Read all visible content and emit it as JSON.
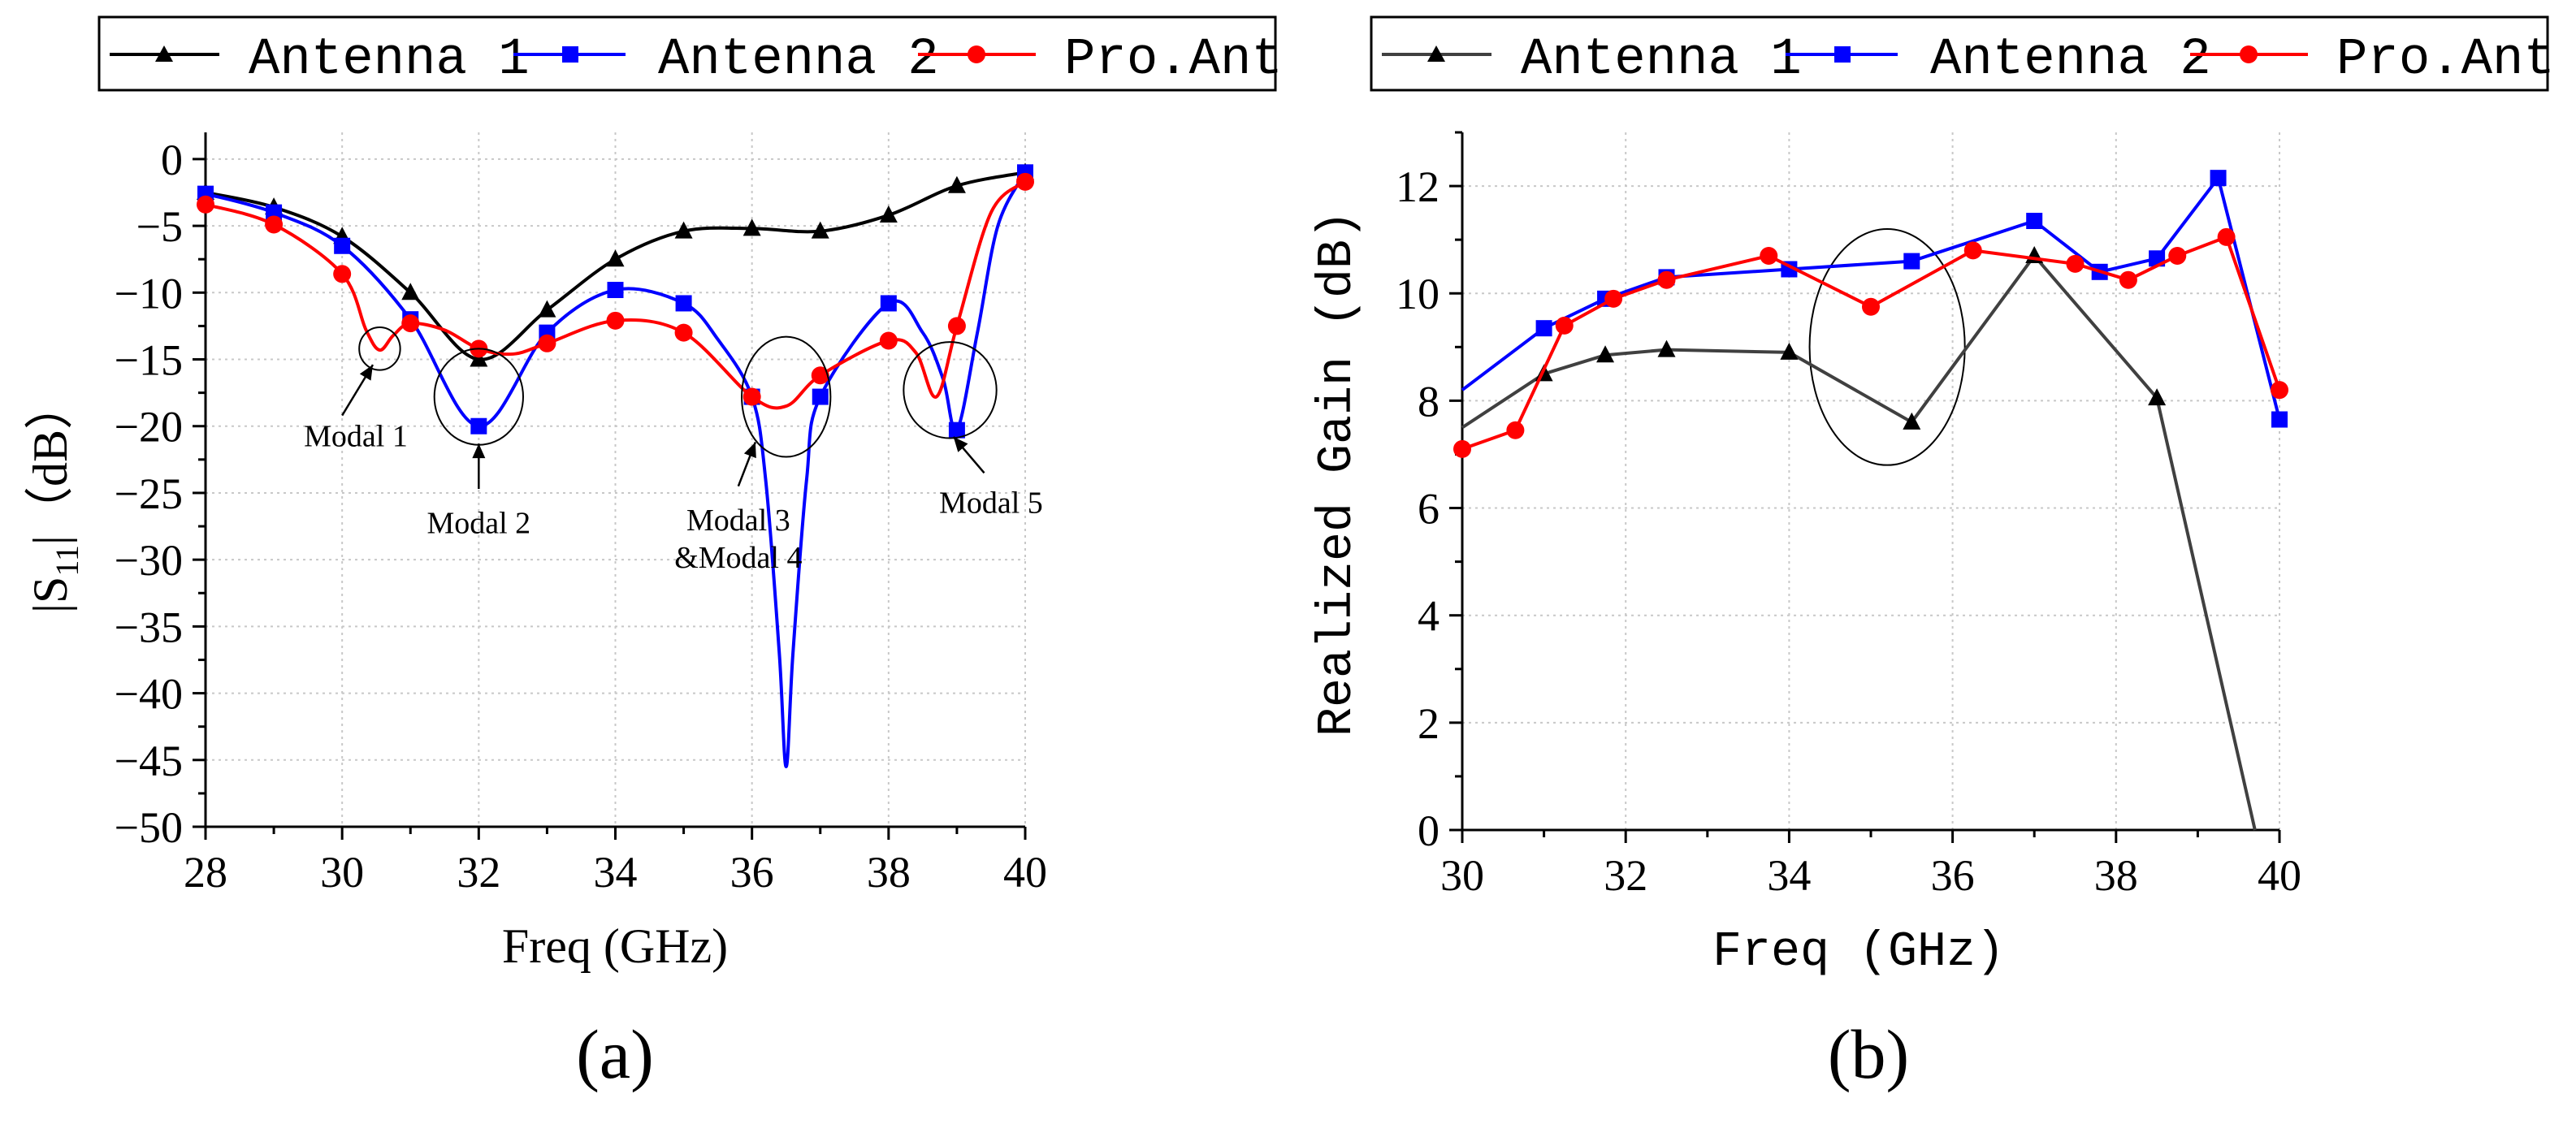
{
  "colors": {
    "antenna1": "#000000",
    "antenna1_b": "#404040",
    "antenna2": "#0000ff",
    "pro_ant": "#ff0000",
    "grid": "#c8c8c8"
  },
  "chart_data": [
    {
      "type": "line",
      "panel_label": "(a)",
      "title": "",
      "xlabel": "Freq (GHz)",
      "ylabel_main": "|S",
      "ylabel_sub": "11",
      "ylabel_tail": "|（dB）",
      "xlim": [
        28,
        40
      ],
      "ylim": [
        -50,
        2
      ],
      "xticks": [
        28,
        30,
        32,
        34,
        36,
        38,
        40
      ],
      "yticks": [
        0,
        -5,
        -10,
        -15,
        -20,
        -25,
        -30,
        -35,
        -40,
        -45,
        -50
      ],
      "xtick_labels": [
        "28",
        "30",
        "32",
        "34",
        "36",
        "38",
        "40"
      ],
      "ytick_labels": [
        "0",
        "−5",
        "−10",
        "−15",
        "−20",
        "−25",
        "−30",
        "−35",
        "−40",
        "−45",
        "−50"
      ],
      "grid": true,
      "legend": [
        "Antenna 1",
        "Antenna 2",
        "Pro.Ant"
      ],
      "series": [
        {
          "name": "Antenna 1",
          "marker": "triangle",
          "curve": [
            [
              28,
              -2.5
            ],
            [
              29,
              -3.6
            ],
            [
              30,
              -5.8
            ],
            [
              31,
              -10.0
            ],
            [
              32,
              -15.0
            ],
            [
              33,
              -11.3
            ],
            [
              34,
              -7.5
            ],
            [
              35,
              -5.4
            ],
            [
              36,
              -5.2
            ],
            [
              37,
              -5.4
            ],
            [
              38,
              -4.2
            ],
            [
              39,
              -2.0
            ],
            [
              40,
              -1.0
            ]
          ],
          "markers": [
            [
              28,
              -2.5
            ],
            [
              29,
              -3.6
            ],
            [
              30,
              -5.8
            ],
            [
              31,
              -10.0
            ],
            [
              32,
              -15.0
            ],
            [
              33,
              -11.3
            ],
            [
              34,
              -7.5
            ],
            [
              35,
              -5.4
            ],
            [
              36,
              -5.2
            ],
            [
              37,
              -5.4
            ],
            [
              38,
              -4.2
            ],
            [
              39,
              -2.0
            ],
            [
              40,
              -1.0
            ]
          ]
        },
        {
          "name": "Antenna 2",
          "marker": "square",
          "curve": [
            [
              28,
              -2.6
            ],
            [
              29,
              -4.0
            ],
            [
              30,
              -6.5
            ],
            [
              31,
              -12.0
            ],
            [
              32,
              -20.0
            ],
            [
              33,
              -13.0
            ],
            [
              34,
              -9.8
            ],
            [
              35,
              -10.8
            ],
            [
              35.5,
              -13.5
            ],
            [
              36,
              -17.8
            ],
            [
              36.2,
              -24.0
            ],
            [
              36.4,
              -37.0
            ],
            [
              36.5,
              -45.5
            ],
            [
              36.6,
              -37.0
            ],
            [
              36.8,
              -24.0
            ],
            [
              37,
              -17.8
            ],
            [
              38,
              -10.8
            ],
            [
              38.5,
              -13.0
            ],
            [
              38.8,
              -16.5
            ],
            [
              39,
              -20.3
            ],
            [
              39.3,
              -13.0
            ],
            [
              39.6,
              -5.0
            ],
            [
              40,
              -1.0
            ]
          ],
          "markers": [
            [
              28,
              -2.6
            ],
            [
              29,
              -4.0
            ],
            [
              30,
              -6.5
            ],
            [
              31,
              -12.0
            ],
            [
              32,
              -20.0
            ],
            [
              33,
              -13.0
            ],
            [
              34,
              -9.8
            ],
            [
              35,
              -10.8
            ],
            [
              36,
              -17.8
            ],
            [
              37,
              -17.8
            ],
            [
              38,
              -10.8
            ],
            [
              39,
              -20.3
            ],
            [
              40,
              -1.0
            ]
          ]
        },
        {
          "name": "Pro.Ant",
          "marker": "circle",
          "curve": [
            [
              28,
              -3.4
            ],
            [
              29,
              -4.9
            ],
            [
              30,
              -8.6
            ],
            [
              30.35,
              -12.8
            ],
            [
              30.55,
              -14.3
            ],
            [
              30.75,
              -13.2
            ],
            [
              31,
              -12.3
            ],
            [
              31.5,
              -12.8
            ],
            [
              32,
              -14.2
            ],
            [
              32.5,
              -14.6
            ],
            [
              33,
              -13.8
            ],
            [
              34,
              -12.1
            ],
            [
              35,
              -13.0
            ],
            [
              36,
              -17.8
            ],
            [
              36.5,
              -18.5
            ],
            [
              37,
              -16.2
            ],
            [
              38,
              -13.6
            ],
            [
              38.4,
              -14.5
            ],
            [
              38.7,
              -17.8
            ],
            [
              39,
              -12.5
            ],
            [
              39.5,
              -4.0
            ],
            [
              40,
              -1.7
            ]
          ],
          "markers": [
            [
              28,
              -3.4
            ],
            [
              29,
              -4.9
            ],
            [
              30,
              -8.6
            ],
            [
              31,
              -12.3
            ],
            [
              32,
              -14.2
            ],
            [
              33,
              -13.8
            ],
            [
              34,
              -12.1
            ],
            [
              35,
              -13.0
            ],
            [
              36,
              -17.8
            ],
            [
              37,
              -16.2
            ],
            [
              38,
              -13.6
            ],
            [
              39,
              -12.5
            ],
            [
              40,
              -1.7
            ]
          ]
        }
      ],
      "annotations": [
        {
          "text": "Modal 1",
          "lines": [
            "Modal 1"
          ],
          "circle": {
            "x": 30.55,
            "y": -14.2,
            "rx": 0.3,
            "ry": 1.6
          },
          "arrow_from": [
            30.0,
            -19.2
          ],
          "arrow_to": [
            30.45,
            -15.4
          ],
          "text_at": [
            30.2,
            -21.5
          ]
        },
        {
          "text": "Modal 2",
          "lines": [
            "Modal 2"
          ],
          "circle": {
            "x": 32.0,
            "y": -17.8,
            "rx": 0.65,
            "ry": 3.6
          },
          "arrow_from": [
            32.0,
            -24.7
          ],
          "arrow_to": [
            32.0,
            -21.3
          ],
          "text_at": [
            32.0,
            -28.0
          ]
        },
        {
          "text": "Modal 3 &Modal 4",
          "lines": [
            "Modal 3",
            "&Modal 4"
          ],
          "circle": {
            "x": 36.5,
            "y": -17.8,
            "rx": 0.65,
            "ry": 4.5
          },
          "arrow_from": [
            35.8,
            -24.5
          ],
          "arrow_to": [
            36.05,
            -21.2
          ],
          "text_at": [
            35.8,
            -27.8
          ]
        },
        {
          "text": "Modal 5",
          "lines": [
            "Modal 5"
          ],
          "circle": {
            "x": 38.9,
            "y": -17.3,
            "rx": 0.68,
            "ry": 3.6
          },
          "arrow_from": [
            39.4,
            -23.5
          ],
          "arrow_to": [
            38.95,
            -20.8
          ],
          "text_at": [
            39.5,
            -26.5
          ]
        }
      ]
    },
    {
      "type": "line",
      "panel_label": "(b)",
      "title": "",
      "xlabel": "Freq  (GHz)",
      "ylabel": "Realized Gain  (dB)",
      "xlim": [
        30,
        40
      ],
      "ylim": [
        0,
        13
      ],
      "xticks": [
        30,
        32,
        34,
        36,
        38,
        40
      ],
      "yticks": [
        0,
        2,
        4,
        6,
        8,
        10,
        12
      ],
      "xtick_labels": [
        "30",
        "32",
        "34",
        "36",
        "38",
        "40"
      ],
      "ytick_labels": [
        "0",
        "2",
        "4",
        "6",
        "8",
        "10",
        "12"
      ],
      "grid": true,
      "legend": [
        "Antenna 1",
        "Antenna 2",
        "Pro.Ant"
      ],
      "series": [
        {
          "name": "Antenna 1",
          "marker": "triangle",
          "curve": [
            [
              30,
              7.5
            ],
            [
              31,
              8.5
            ],
            [
              31.75,
              8.85
            ],
            [
              32.5,
              8.95
            ],
            [
              34,
              8.9
            ],
            [
              35.5,
              7.6
            ],
            [
              37,
              10.7
            ],
            [
              38.5,
              8.05
            ],
            [
              39.7,
              0.0
            ]
          ],
          "markers": [
            [
              31,
              8.5
            ],
            [
              31.75,
              8.85
            ],
            [
              32.5,
              8.95
            ],
            [
              34,
              8.9
            ],
            [
              35.5,
              7.6
            ],
            [
              37,
              10.7
            ],
            [
              38.5,
              8.05
            ]
          ]
        },
        {
          "name": "Antenna 2",
          "marker": "square",
          "curve": [
            [
              30,
              8.2
            ],
            [
              31,
              9.35
            ],
            [
              31.75,
              9.9
            ],
            [
              32.5,
              10.3
            ],
            [
              34,
              10.45
            ],
            [
              35.5,
              10.6
            ],
            [
              37,
              11.35
            ],
            [
              37.8,
              10.4
            ],
            [
              38.5,
              10.65
            ],
            [
              39.25,
              12.15
            ],
            [
              40,
              7.65
            ]
          ],
          "markers": [
            [
              31,
              9.35
            ],
            [
              31.75,
              9.9
            ],
            [
              32.5,
              10.3
            ],
            [
              34,
              10.45
            ],
            [
              35.5,
              10.6
            ],
            [
              37,
              11.35
            ],
            [
              37.8,
              10.4
            ],
            [
              38.5,
              10.65
            ],
            [
              39.25,
              12.15
            ],
            [
              40,
              7.65
            ]
          ]
        },
        {
          "name": "Pro.Ant",
          "marker": "circle",
          "curve": [
            [
              30,
              7.1
            ],
            [
              30.65,
              7.45
            ],
            [
              31.25,
              9.4
            ],
            [
              31.85,
              9.9
            ],
            [
              32.5,
              10.25
            ],
            [
              33.75,
              10.7
            ],
            [
              35,
              9.75
            ],
            [
              36.25,
              10.8
            ],
            [
              37.5,
              10.55
            ],
            [
              38.15,
              10.25
            ],
            [
              38.75,
              10.7
            ],
            [
              39.35,
              11.05
            ],
            [
              40,
              8.2
            ]
          ],
          "markers": [
            [
              30,
              7.1
            ],
            [
              30.65,
              7.45
            ],
            [
              31.25,
              9.4
            ],
            [
              31.85,
              9.9
            ],
            [
              32.5,
              10.25
            ],
            [
              33.75,
              10.7
            ],
            [
              35,
              9.75
            ],
            [
              36.25,
              10.8
            ],
            [
              37.5,
              10.55
            ],
            [
              38.15,
              10.25
            ],
            [
              38.75,
              10.7
            ],
            [
              39.35,
              11.05
            ],
            [
              40,
              8.2
            ]
          ]
        }
      ],
      "annotations": [
        {
          "text": "",
          "lines": [],
          "circle": {
            "x": 35.2,
            "y": 9.0,
            "rx": 0.95,
            "ry": 2.2
          }
        }
      ]
    }
  ]
}
